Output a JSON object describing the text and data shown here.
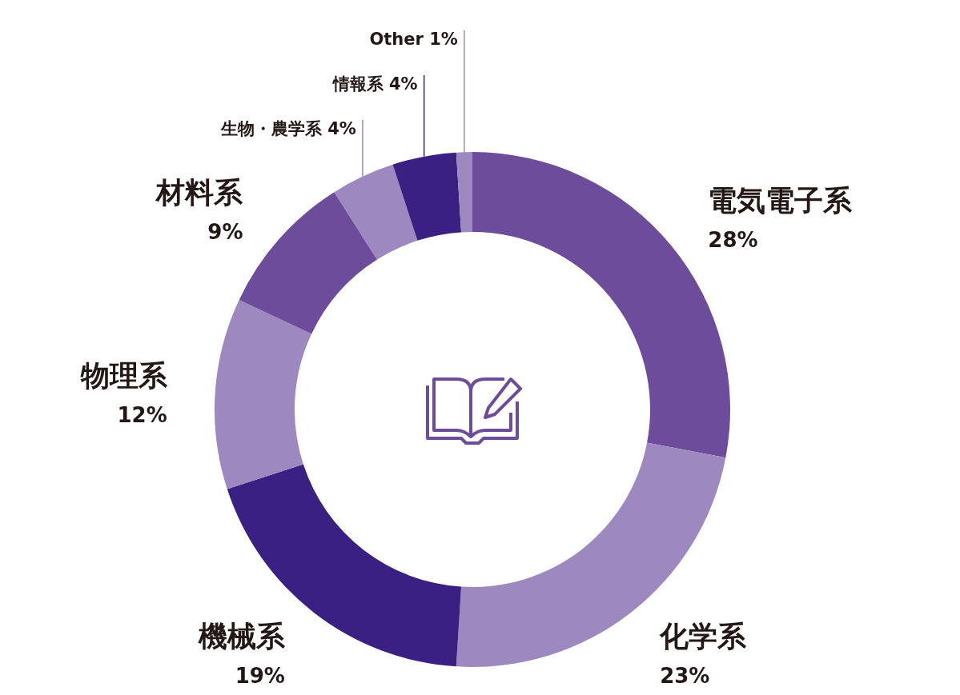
{
  "chart_data": {
    "type": "donut",
    "categories": [
      "電気電子系",
      "化学系",
      "機械系",
      "物理系",
      "材料系",
      "生物・農学系",
      "情報系",
      "Other"
    ],
    "values": [
      28,
      23,
      19,
      12,
      9,
      4,
      4,
      1
    ],
    "colors": [
      "#6e4c9c",
      "#9d88c0",
      "#3b2084",
      "#9d88c0",
      "#6e4c9c",
      "#9d88c0",
      "#3b2084",
      "#9d88c0"
    ],
    "value_labels": [
      "28%",
      "23%",
      "19%",
      "12%",
      "9%",
      "4%",
      "4%",
      "1%"
    ]
  }
}
